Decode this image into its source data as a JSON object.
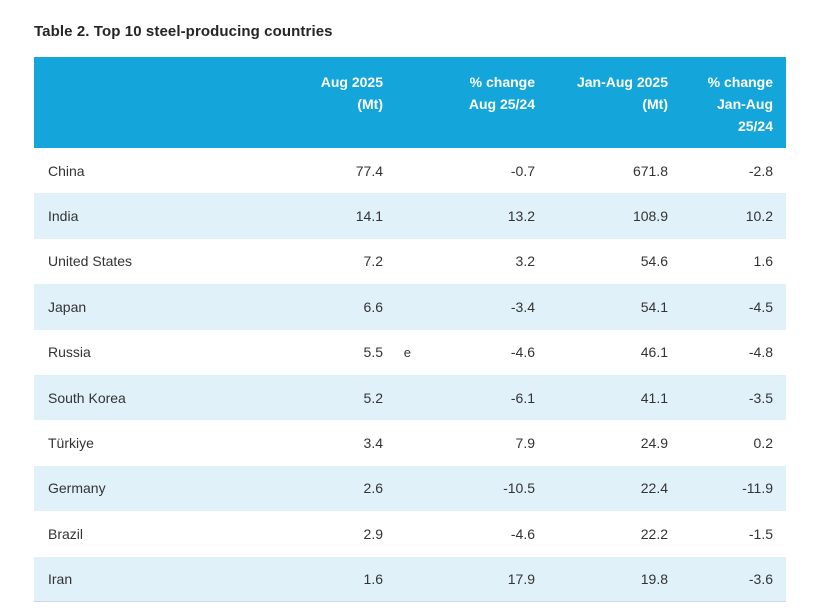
{
  "page": {
    "title": "Table 2. Top 10 steel-producing countries"
  },
  "colors": {
    "header_bg": "#14a6db",
    "header_text": "#ffffff",
    "alt_row_bg": "#e1f1f9",
    "body_text": "#333333",
    "title_text": "#252525",
    "table_bottom_border": "#ccd9df"
  },
  "table": {
    "columns": [
      {
        "key": "country",
        "lines": []
      },
      {
        "key": "aug_2025_mt",
        "lines": [
          "Aug 2025",
          "(Mt)"
        ]
      },
      {
        "key": "pct_change_aug",
        "lines": [
          "% change",
          "Aug 25/24"
        ]
      },
      {
        "key": "jan_aug_2025_mt",
        "lines": [
          "Jan-Aug 2025",
          "(Mt)"
        ]
      },
      {
        "key": "pct_change_jan_aug",
        "lines": [
          "% change",
          "Jan-Aug",
          "25/24"
        ]
      }
    ],
    "rows": [
      {
        "country": "China",
        "aug": "77.4",
        "marker": "",
        "chg_aug": "-0.7",
        "jan_aug": "671.8",
        "chg_jan_aug": "-2.8"
      },
      {
        "country": "India",
        "aug": "14.1",
        "marker": "",
        "chg_aug": "13.2",
        "jan_aug": "108.9",
        "chg_jan_aug": "10.2"
      },
      {
        "country": "United States",
        "aug": "7.2",
        "marker": "",
        "chg_aug": "3.2",
        "jan_aug": "54.6",
        "chg_jan_aug": "1.6"
      },
      {
        "country": "Japan",
        "aug": "6.6",
        "marker": "",
        "chg_aug": "-3.4",
        "jan_aug": "54.1",
        "chg_jan_aug": "-4.5"
      },
      {
        "country": "Russia",
        "aug": "5.5",
        "marker": "e",
        "chg_aug": "-4.6",
        "jan_aug": "46.1",
        "chg_jan_aug": "-4.8"
      },
      {
        "country": "South Korea",
        "aug": "5.2",
        "marker": "",
        "chg_aug": "-6.1",
        "jan_aug": "41.1",
        "chg_jan_aug": "-3.5"
      },
      {
        "country": "Türkiye",
        "aug": "3.4",
        "marker": "",
        "chg_aug": "7.9",
        "jan_aug": "24.9",
        "chg_jan_aug": "0.2"
      },
      {
        "country": "Germany",
        "aug": "2.6",
        "marker": "",
        "chg_aug": "-10.5",
        "jan_aug": "22.4",
        "chg_jan_aug": "-11.9"
      },
      {
        "country": "Brazil",
        "aug": "2.9",
        "marker": "",
        "chg_aug": "-4.6",
        "jan_aug": "22.2",
        "chg_jan_aug": "-1.5"
      },
      {
        "country": "Iran",
        "aug": "1.6",
        "marker": "",
        "chg_aug": "17.9",
        "jan_aug": "19.8",
        "chg_jan_aug": "-3.6"
      }
    ]
  }
}
